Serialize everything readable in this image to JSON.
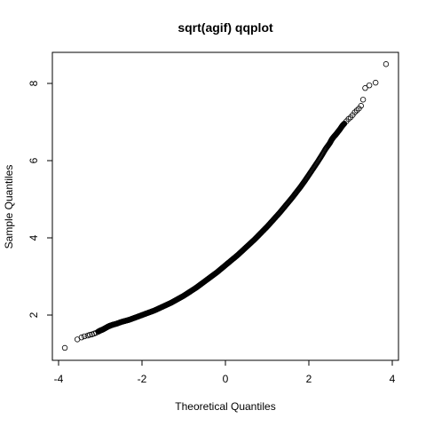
{
  "chart_data": {
    "type": "scatter",
    "title": "sqrt(agif) qqplot",
    "xlabel": "Theoretical Quantiles",
    "ylabel": "Sample Quantiles",
    "xlim": [
      -4,
      4
    ],
    "ylim": [
      1,
      8.8
    ],
    "x_ticks": [
      -4,
      -2,
      0,
      2,
      4
    ],
    "y_ticks": [
      2,
      4,
      6,
      8
    ],
    "grid": false,
    "legend": "none",
    "series": [
      {
        "marker": "open-circle",
        "x": [
          -3.85,
          -3.55,
          -3.45,
          -3.38,
          -3.3,
          -3.25,
          -3.2,
          -3.15,
          -3.1,
          -3.05,
          -3.0,
          -2.95,
          -2.9,
          -2.85,
          -2.8,
          -2.75,
          -2.7,
          -2.6,
          -2.5,
          -2.4,
          -2.3,
          -2.2,
          -2.1,
          -2.0,
          -1.9,
          -1.8,
          -1.7,
          -1.6,
          -1.5,
          -1.4,
          -1.3,
          -1.2,
          -1.1,
          -1.0,
          -0.9,
          -0.8,
          -0.7,
          -0.6,
          -0.5,
          -0.4,
          -0.3,
          -0.2,
          -0.1,
          0.0,
          0.1,
          0.2,
          0.3,
          0.4,
          0.5,
          0.6,
          0.7,
          0.8,
          0.9,
          1.0,
          1.1,
          1.2,
          1.3,
          1.4,
          1.5,
          1.6,
          1.7,
          1.8,
          1.9,
          2.0,
          2.1,
          2.2,
          2.3,
          2.4,
          2.5,
          2.55,
          2.6,
          2.65,
          2.7,
          2.75,
          2.8,
          2.85,
          2.9,
          2.95,
          3.0,
          3.05,
          3.1,
          3.15,
          3.2,
          3.25,
          3.3,
          3.35,
          3.45,
          3.6,
          3.85
        ],
        "y": [
          1.15,
          1.37,
          1.42,
          1.45,
          1.47,
          1.49,
          1.5,
          1.52,
          1.54,
          1.57,
          1.6,
          1.62,
          1.65,
          1.68,
          1.71,
          1.73,
          1.75,
          1.78,
          1.82,
          1.85,
          1.88,
          1.92,
          1.96,
          2.0,
          2.04,
          2.08,
          2.12,
          2.17,
          2.22,
          2.27,
          2.32,
          2.38,
          2.44,
          2.5,
          2.57,
          2.64,
          2.71,
          2.79,
          2.87,
          2.95,
          3.03,
          3.11,
          3.2,
          3.29,
          3.38,
          3.47,
          3.56,
          3.66,
          3.76,
          3.86,
          3.96,
          4.07,
          4.18,
          4.29,
          4.41,
          4.53,
          4.65,
          4.78,
          4.91,
          5.04,
          5.18,
          5.32,
          5.47,
          5.63,
          5.79,
          5.95,
          6.12,
          6.3,
          6.45,
          6.55,
          6.62,
          6.68,
          6.75,
          6.82,
          6.9,
          6.96,
          7.02,
          7.08,
          7.12,
          7.18,
          7.25,
          7.3,
          7.35,
          7.42,
          7.58,
          7.88,
          7.95,
          8.02,
          8.5
        ]
      }
    ]
  }
}
